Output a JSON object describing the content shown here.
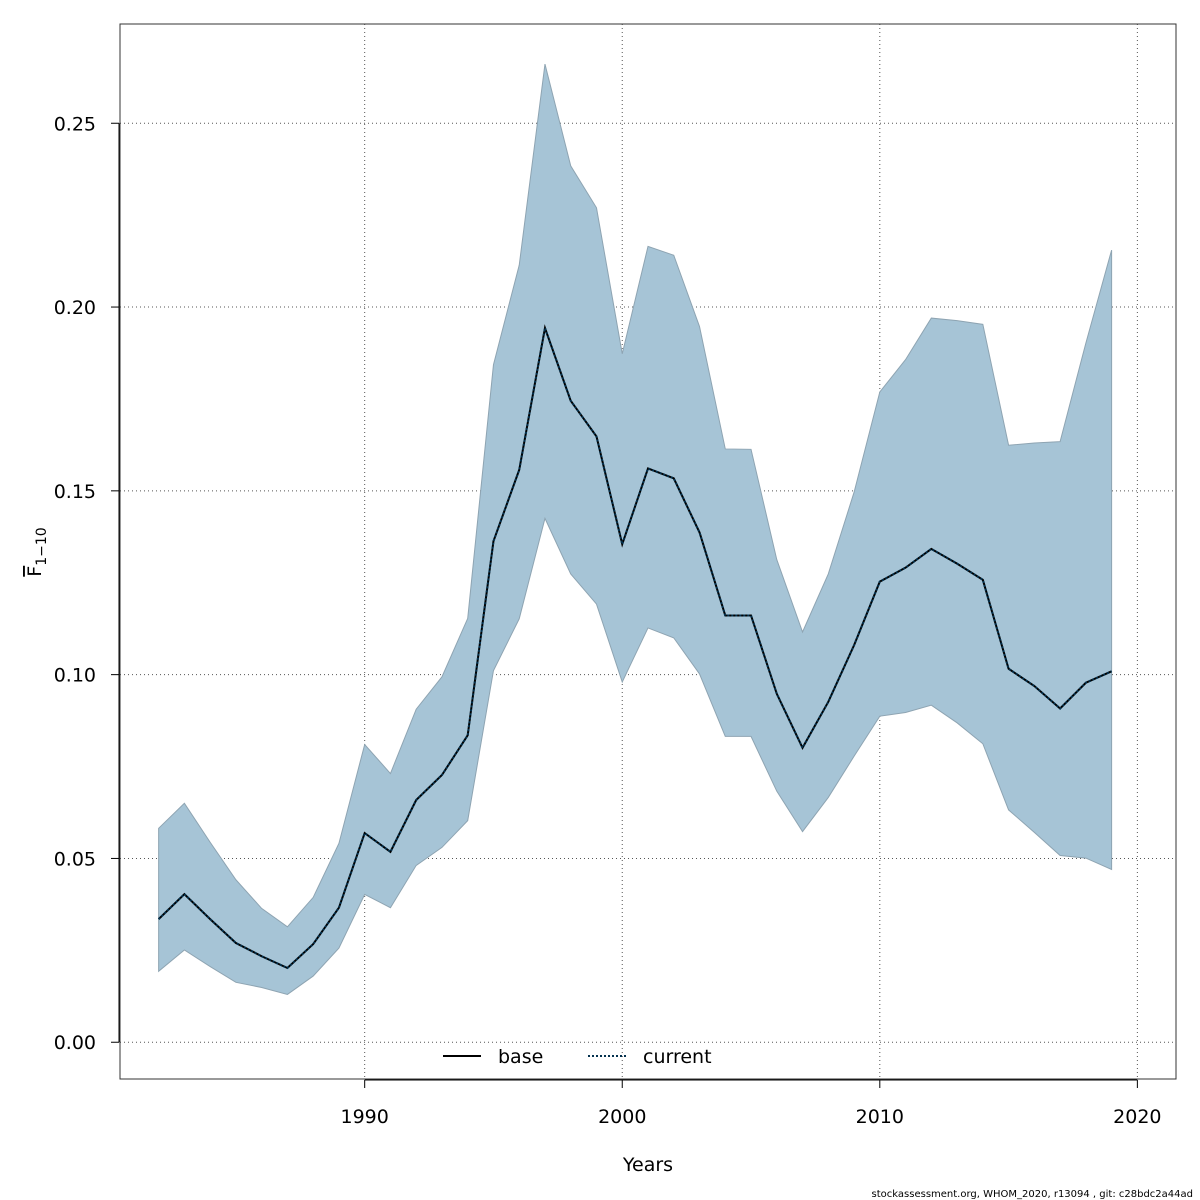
{
  "chart_data": {
    "type": "area",
    "title": "",
    "xlabel": "Years",
    "ylabel_base": "F",
    "ylabel_sub": "1−10",
    "xlim": [
      1980.5,
      2021.5
    ],
    "ylim": [
      -0.01,
      0.277
    ],
    "xticks": [
      1990,
      2000,
      2010,
      2020
    ],
    "xtick_labels": [
      "1990",
      "2000",
      "2010",
      "2020"
    ],
    "yticks": [
      0.0,
      0.05,
      0.1,
      0.15,
      0.2,
      0.25
    ],
    "ytick_labels": [
      "0.00",
      "0.05",
      "0.10",
      "0.15",
      "0.20",
      "0.25"
    ],
    "grid": true,
    "legend_placement": "bottom-center",
    "x": [
      1982,
      1983,
      1984,
      1985,
      1986,
      1987,
      1988,
      1989,
      1990,
      1991,
      1992,
      1993,
      1994,
      1995,
      1996,
      1997,
      1998,
      1999,
      2000,
      2001,
      2002,
      2003,
      2004,
      2005,
      2006,
      2007,
      2008,
      2009,
      2010,
      2011,
      2012,
      2013,
      2014,
      2015,
      2016,
      2017,
      2018,
      2019
    ],
    "series": [
      {
        "name": "base",
        "style": "solid",
        "values": [
          0.0335,
          0.0403,
          0.0335,
          0.027,
          0.0234,
          0.0202,
          0.0267,
          0.0366,
          0.0569,
          0.0518,
          0.0659,
          0.0727,
          0.0835,
          0.1363,
          0.1557,
          0.1943,
          0.1745,
          0.1648,
          0.1355,
          0.1561,
          0.1534,
          0.1387,
          0.1161,
          0.1161,
          0.0948,
          0.0801,
          0.0926,
          0.108,
          0.1253,
          0.1291,
          0.1342,
          0.1302,
          0.1258,
          0.1016,
          0.0969,
          0.0908,
          0.0978,
          0.1009
        ]
      },
      {
        "name": "current",
        "style": "dotted",
        "values": [
          0.0335,
          0.0403,
          0.0335,
          0.027,
          0.0234,
          0.0202,
          0.0267,
          0.0366,
          0.0569,
          0.0518,
          0.0659,
          0.0727,
          0.0835,
          0.1363,
          0.1557,
          0.1943,
          0.1745,
          0.1648,
          0.1355,
          0.1561,
          0.1534,
          0.1387,
          0.1161,
          0.1161,
          0.0948,
          0.0801,
          0.0926,
          0.108,
          0.1253,
          0.1291,
          0.1342,
          0.1302,
          0.1258,
          0.1016,
          0.0969,
          0.0908,
          0.0978,
          0.1009
        ]
      }
    ],
    "band": {
      "lower": [
        0.0193,
        0.0251,
        0.0206,
        0.0163,
        0.0149,
        0.013,
        0.018,
        0.0256,
        0.0402,
        0.0366,
        0.0481,
        0.053,
        0.0603,
        0.1011,
        0.1152,
        0.1425,
        0.1274,
        0.1192,
        0.098,
        0.1127,
        0.11,
        0.1002,
        0.0832,
        0.0832,
        0.0683,
        0.0573,
        0.0666,
        0.0778,
        0.0887,
        0.0897,
        0.0917,
        0.0869,
        0.0812,
        0.0632,
        0.0571,
        0.0508,
        0.0501,
        0.047
      ],
      "upper": [
        0.0582,
        0.065,
        0.0544,
        0.0442,
        0.0364,
        0.0314,
        0.0394,
        0.0541,
        0.081,
        0.0731,
        0.0906,
        0.0994,
        0.1153,
        0.1843,
        0.2114,
        0.2661,
        0.2384,
        0.227,
        0.1873,
        0.2165,
        0.2141,
        0.1947,
        0.1614,
        0.1613,
        0.1313,
        0.1116,
        0.1274,
        0.1496,
        0.1769,
        0.1857,
        0.197,
        0.1963,
        0.1953,
        0.1624,
        0.163,
        0.1634,
        0.1902,
        0.2155
      ]
    },
    "colors": {
      "band_fill": "#a6c4d6",
      "band_edge": "#8ea4b2",
      "base_line": "#000000",
      "current_line": "#04324f",
      "grid": "#555555"
    }
  },
  "footer": "stockassessment.org, WHOM_2020, r13094 , git: c28bdc2a44ad"
}
